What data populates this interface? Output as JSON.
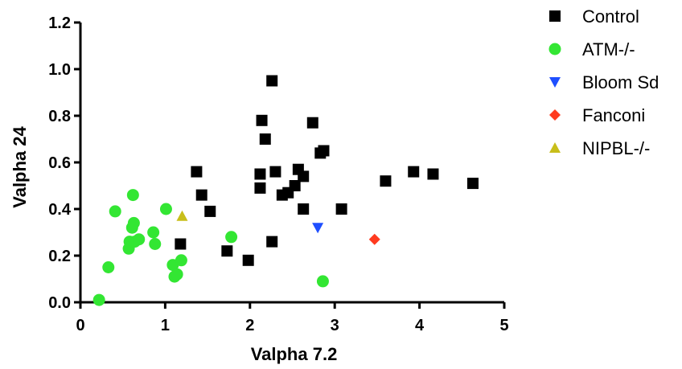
{
  "chart_data": {
    "type": "scatter",
    "xlabel": "Valpha 7.2",
    "ylabel": "Valpha 24",
    "xlim": [
      0,
      5
    ],
    "ylim": [
      0,
      1.2
    ],
    "xticks": [
      "0",
      "1",
      "2",
      "3",
      "4",
      "5"
    ],
    "yticks": [
      "0.0",
      "0.2",
      "0.4",
      "0.6",
      "0.8",
      "1.0",
      "1.2"
    ],
    "grid": false,
    "legend_position": "top-right",
    "series": [
      {
        "name": "Control",
        "marker": "square",
        "color": "#000000",
        "points": [
          [
            1.37,
            0.56
          ],
          [
            1.43,
            0.46
          ],
          [
            1.53,
            0.39
          ],
          [
            1.18,
            0.25
          ],
          [
            1.73,
            0.22
          ],
          [
            1.98,
            0.18
          ],
          [
            2.12,
            0.55
          ],
          [
            2.12,
            0.49
          ],
          [
            2.14,
            0.78
          ],
          [
            2.18,
            0.7
          ],
          [
            2.26,
            0.95
          ],
          [
            2.3,
            0.56
          ],
          [
            2.26,
            0.26
          ],
          [
            2.38,
            0.46
          ],
          [
            2.45,
            0.47
          ],
          [
            2.53,
            0.5
          ],
          [
            2.57,
            0.57
          ],
          [
            2.63,
            0.54
          ],
          [
            2.63,
            0.4
          ],
          [
            2.74,
            0.77
          ],
          [
            2.83,
            0.64
          ],
          [
            2.87,
            0.65
          ],
          [
            3.08,
            0.4
          ],
          [
            3.6,
            0.52
          ],
          [
            3.93,
            0.56
          ],
          [
            4.16,
            0.55
          ],
          [
            4.63,
            0.51
          ]
        ]
      },
      {
        "name": "ATM-/-",
        "marker": "circle",
        "color": "#33e633",
        "points": [
          [
            0.22,
            0.01
          ],
          [
            0.33,
            0.15
          ],
          [
            0.41,
            0.39
          ],
          [
            0.57,
            0.23
          ],
          [
            0.58,
            0.26
          ],
          [
            0.61,
            0.32
          ],
          [
            0.63,
            0.34
          ],
          [
            0.64,
            0.26
          ],
          [
            0.69,
            0.27
          ],
          [
            0.62,
            0.46
          ],
          [
            0.86,
            0.3
          ],
          [
            0.88,
            0.25
          ],
          [
            1.01,
            0.4
          ],
          [
            1.09,
            0.16
          ],
          [
            1.11,
            0.11
          ],
          [
            1.14,
            0.12
          ],
          [
            1.19,
            0.18
          ],
          [
            1.78,
            0.28
          ],
          [
            2.86,
            0.09
          ]
        ]
      },
      {
        "name": "Bloom Sd",
        "marker": "triangle-down",
        "color": "#1f4fff",
        "points": [
          [
            2.8,
            0.32
          ]
        ]
      },
      {
        "name": "Fanconi",
        "marker": "diamond",
        "color": "#ff3b1f",
        "points": [
          [
            3.47,
            0.27
          ]
        ]
      },
      {
        "name": "NIPBL-/-",
        "marker": "triangle-up",
        "color": "#c8be1a",
        "points": [
          [
            1.2,
            0.37
          ]
        ]
      }
    ]
  }
}
